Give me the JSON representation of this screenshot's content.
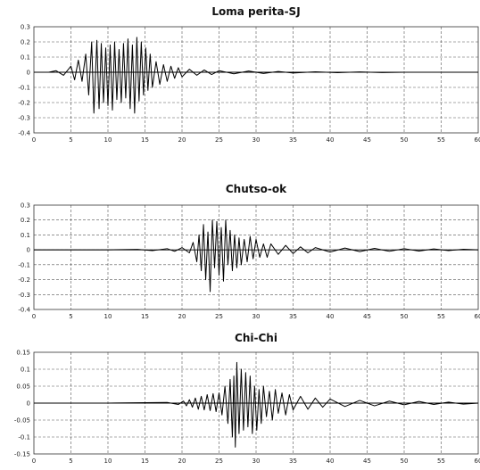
{
  "chart_data": [
    {
      "type": "line",
      "title": "Loma perita-SJ",
      "xlim": [
        0,
        60
      ],
      "ylim": [
        -0.4,
        0.3
      ],
      "x_ticks": [
        "0",
        "5",
        "10",
        "15",
        "20",
        "25",
        "30",
        "35",
        "40",
        "45",
        "50",
        "55",
        "60"
      ],
      "y_ticks": [
        "0.3",
        "0.2",
        "0.1",
        "0",
        "-0.1",
        "-0.2",
        "-0.3",
        "-0.4"
      ],
      "y_step": 0.1,
      "grid": true,
      "grid_style": "dashed",
      "line_color": "#000000",
      "series": [
        {
          "x": [
            0,
            2,
            3,
            4,
            5,
            5.5,
            6,
            6.5,
            7,
            7.4,
            7.8,
            8.1,
            8.5,
            8.8,
            9.1,
            9.4,
            9.7,
            10,
            10.3,
            10.6,
            10.9,
            11.2,
            11.5,
            11.8,
            12.1,
            12.4,
            12.7,
            13,
            13.3,
            13.6,
            13.9,
            14.2,
            14.5,
            14.8,
            15.1,
            15.4,
            15.7,
            16,
            16.5,
            17,
            17.5,
            18,
            18.5,
            19,
            19.5,
            20,
            21,
            22,
            23,
            24,
            25,
            27,
            29,
            31,
            33,
            35,
            38,
            41,
            44,
            47,
            50
          ],
          "y": [
            0,
            0,
            0.01,
            -0.02,
            0.04,
            -0.05,
            0.08,
            -0.06,
            0.12,
            -0.15,
            0.2,
            -0.27,
            0.21,
            -0.24,
            0.19,
            -0.2,
            0.16,
            -0.22,
            0.18,
            -0.25,
            0.2,
            -0.18,
            0.15,
            -0.2,
            0.19,
            -0.17,
            0.22,
            -0.24,
            0.18,
            -0.27,
            0.23,
            -0.19,
            0.2,
            -0.15,
            0.16,
            -0.12,
            0.12,
            -0.1,
            0.07,
            -0.08,
            0.05,
            -0.06,
            0.04,
            -0.04,
            0.03,
            -0.03,
            0.02,
            -0.02,
            0.015,
            -0.015,
            0.01,
            -0.01,
            0.008,
            -0.008,
            0.005,
            -0.005,
            0.003,
            -0.003,
            0.002,
            -0.002,
            0
          ]
        }
      ]
    },
    {
      "type": "line",
      "title": "Chutso-ok",
      "xlim": [
        0,
        60
      ],
      "ylim": [
        -0.4,
        0.3
      ],
      "x_ticks": [
        "0",
        "5",
        "10",
        "15",
        "20",
        "25",
        "30",
        "35",
        "40",
        "45",
        "50",
        "55",
        "60"
      ],
      "y_ticks": [
        "0.3",
        "0.2",
        "0.1",
        "0",
        "-0.1",
        "-0.2",
        "-0.3",
        "-0.4"
      ],
      "y_step": 0.1,
      "grid": true,
      "grid_style": "dashed",
      "line_color": "#000000",
      "series": [
        {
          "x": [
            0,
            10,
            14,
            16,
            18,
            19,
            20,
            21,
            21.5,
            22,
            22.3,
            22.6,
            22.9,
            23.2,
            23.5,
            23.8,
            24.1,
            24.4,
            24.7,
            25,
            25.3,
            25.6,
            25.9,
            26.2,
            26.5,
            26.8,
            27.1,
            27.4,
            27.7,
            28,
            28.4,
            28.8,
            29.2,
            29.6,
            30,
            30.5,
            31,
            31.5,
            32,
            33,
            34,
            35,
            36,
            37,
            38,
            40,
            42,
            44,
            46,
            48,
            50,
            52,
            54,
            56,
            58,
            60
          ],
          "y": [
            0,
            0,
            0.003,
            -0.005,
            0.008,
            -0.01,
            0.015,
            -0.02,
            0.05,
            -0.08,
            0.1,
            -0.14,
            0.17,
            -0.2,
            0.12,
            -0.28,
            0.2,
            -0.12,
            0.19,
            -0.17,
            0.15,
            -0.21,
            0.2,
            -0.1,
            0.13,
            -0.14,
            0.1,
            -0.12,
            0.08,
            -0.1,
            0.07,
            -0.08,
            0.09,
            -0.06,
            0.07,
            -0.05,
            0.04,
            -0.05,
            0.04,
            -0.03,
            0.03,
            -0.025,
            0.02,
            -0.02,
            0.015,
            -0.015,
            0.012,
            -0.012,
            0.01,
            -0.01,
            0.008,
            -0.008,
            0.006,
            -0.005,
            0.004,
            0
          ]
        }
      ]
    },
    {
      "type": "line",
      "title": "Chi-Chi",
      "xlim": [
        0,
        60
      ],
      "ylim": [
        -0.15,
        0.15
      ],
      "x_ticks": [
        "0",
        "5",
        "10",
        "15",
        "20",
        "25",
        "30",
        "35",
        "40",
        "45",
        "50",
        "55",
        "60"
      ],
      "y_ticks": [
        "0.15",
        "0.1",
        "0.05",
        "0",
        "-0.05",
        "-0.1",
        "-0.15"
      ],
      "y_step": 0.05,
      "grid": true,
      "grid_style": "dashed",
      "line_color": "#000000",
      "series": [
        {
          "x": [
            0,
            10,
            18,
            19.5,
            20.2,
            20.6,
            21,
            21.4,
            21.8,
            22.2,
            22.6,
            23,
            23.4,
            23.8,
            24.2,
            24.6,
            25,
            25.4,
            25.8,
            26.2,
            26.5,
            26.8,
            27,
            27.2,
            27.4,
            27.7,
            28,
            28.3,
            28.6,
            28.9,
            29.2,
            29.5,
            29.8,
            30.1,
            30.4,
            30.7,
            31,
            31.4,
            31.8,
            32.2,
            32.6,
            33,
            33.5,
            34,
            34.5,
            35,
            36,
            37,
            38,
            39,
            40,
            42,
            44,
            46,
            48,
            50,
            52,
            54,
            56,
            58,
            60
          ],
          "y": [
            0,
            0,
            0.002,
            -0.004,
            0.006,
            -0.008,
            0.01,
            -0.012,
            0.015,
            -0.018,
            0.02,
            -0.02,
            0.025,
            -0.022,
            0.028,
            -0.025,
            0.03,
            -0.035,
            0.05,
            -0.06,
            0.07,
            -0.1,
            0.08,
            -0.13,
            0.12,
            -0.09,
            0.1,
            -0.08,
            0.09,
            -0.07,
            0.08,
            -0.09,
            0.05,
            -0.08,
            0.04,
            -0.06,
            0.05,
            -0.04,
            0.035,
            -0.05,
            0.04,
            -0.03,
            0.03,
            -0.035,
            0.025,
            -0.02,
            0.02,
            -0.018,
            0.015,
            -0.012,
            0.012,
            -0.01,
            0.008,
            -0.008,
            0.006,
            -0.005,
            0.005,
            -0.004,
            0.003,
            -0.003,
            0
          ]
        }
      ]
    }
  ]
}
